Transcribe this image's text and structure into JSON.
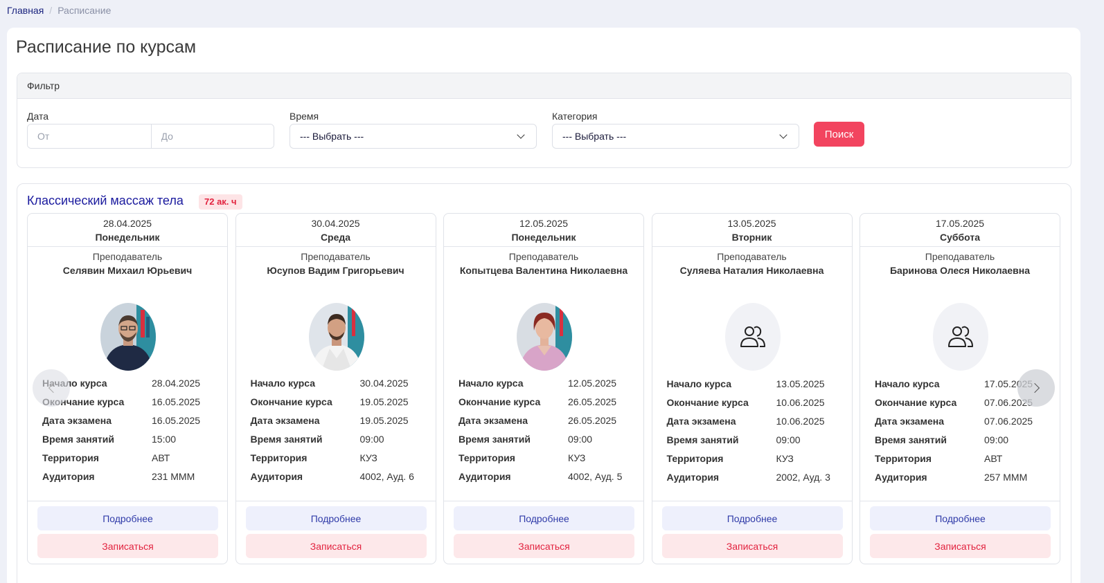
{
  "breadcrumb": {
    "home": "Главная",
    "current": "Расписание"
  },
  "page_title": "Расписание по курсам",
  "filter": {
    "header": "Фильтр",
    "date_label": "Дата",
    "date_from_placeholder": "От",
    "date_to_placeholder": "До",
    "time_label": "Время",
    "time_value": "--- Выбрать ---",
    "category_label": "Категория",
    "category_value": "--- Выбрать ---",
    "search_label": "Поиск"
  },
  "course": {
    "title": "Классический массаж тела",
    "hours": "72 ак. ч",
    "teacher_label": "Преподаватель",
    "labels": {
      "start": "Начало курса",
      "end": "Окончание курса",
      "exam": "Дата экзамена",
      "time": "Время занятий",
      "territory": "Территория",
      "room": "Аудитория"
    },
    "more_label": "Подробнее",
    "enroll_label": "Записаться",
    "cards": [
      {
        "date": "28.04.2025",
        "weekday": "Понедельник",
        "teacher": "Селявин Михаил Юрьевич",
        "photo": "photo-man-dark",
        "start": "28.04.2025",
        "end": "16.05.2025",
        "exam": "16.05.2025",
        "time": "15:00",
        "territory": "АВТ",
        "room": "231 МММ"
      },
      {
        "date": "30.04.2025",
        "weekday": "Среда",
        "teacher": "Юсупов Вадим Григорьевич",
        "photo": "photo-man-white",
        "start": "30.04.2025",
        "end": "19.05.2025",
        "exam": "19.05.2025",
        "time": "09:00",
        "territory": "КУЗ",
        "room": "4002, Ауд. 6"
      },
      {
        "date": "12.05.2025",
        "weekday": "Понедельник",
        "teacher": "Копытцева Валентина Николаевна",
        "photo": "photo-woman-pink",
        "start": "12.05.2025",
        "end": "26.05.2025",
        "exam": "26.05.2025",
        "time": "09:00",
        "territory": "КУЗ",
        "room": "4002, Ауд. 5"
      },
      {
        "date": "13.05.2025",
        "weekday": "Вторник",
        "teacher": "Суляева Наталия Николаевна",
        "photo": "users-icon",
        "start": "13.05.2025",
        "end": "10.06.2025",
        "exam": "10.06.2025",
        "time": "09:00",
        "territory": "КУЗ",
        "room": "2002, Ауд. 3"
      },
      {
        "date": "17.05.2025",
        "weekday": "Суббота",
        "teacher": "Баринова Олеся Николаевна",
        "photo": "users-icon",
        "start": "17.05.2025",
        "end": "07.06.2025",
        "exam": "07.06.2025",
        "time": "09:00",
        "territory": "АВТ",
        "room": "257 МММ"
      }
    ]
  }
}
